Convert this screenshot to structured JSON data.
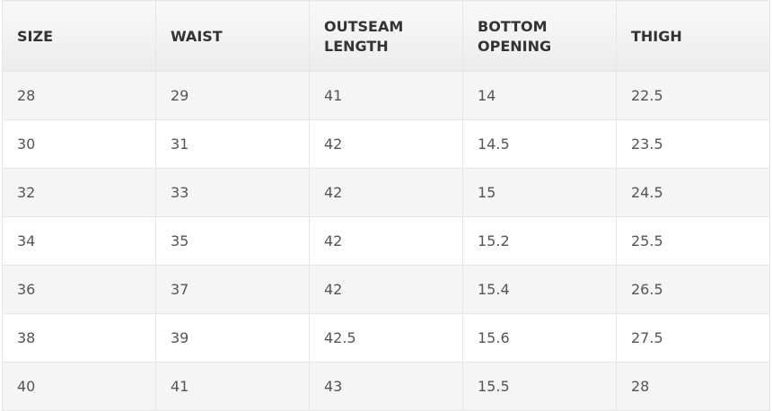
{
  "table": {
    "header": [
      "SIZE",
      "WAIST",
      "OUTSEAM LENGTH",
      "BOTTOM OPENING",
      "THIGH"
    ],
    "rows": [
      [
        "28",
        "29",
        "41",
        "14",
        "22.5"
      ],
      [
        "30",
        "31",
        "42",
        "14.5",
        "23.5"
      ],
      [
        "32",
        "33",
        "42",
        "15",
        "24.5"
      ],
      [
        "34",
        "35",
        "42",
        "15.2",
        "25.5"
      ],
      [
        "36",
        "37",
        "42",
        "15.4",
        "26.5"
      ],
      [
        "38",
        "39",
        "42.5",
        "15.6",
        "27.5"
      ],
      [
        "40",
        "41",
        "43",
        "15.5",
        "28"
      ]
    ]
  }
}
